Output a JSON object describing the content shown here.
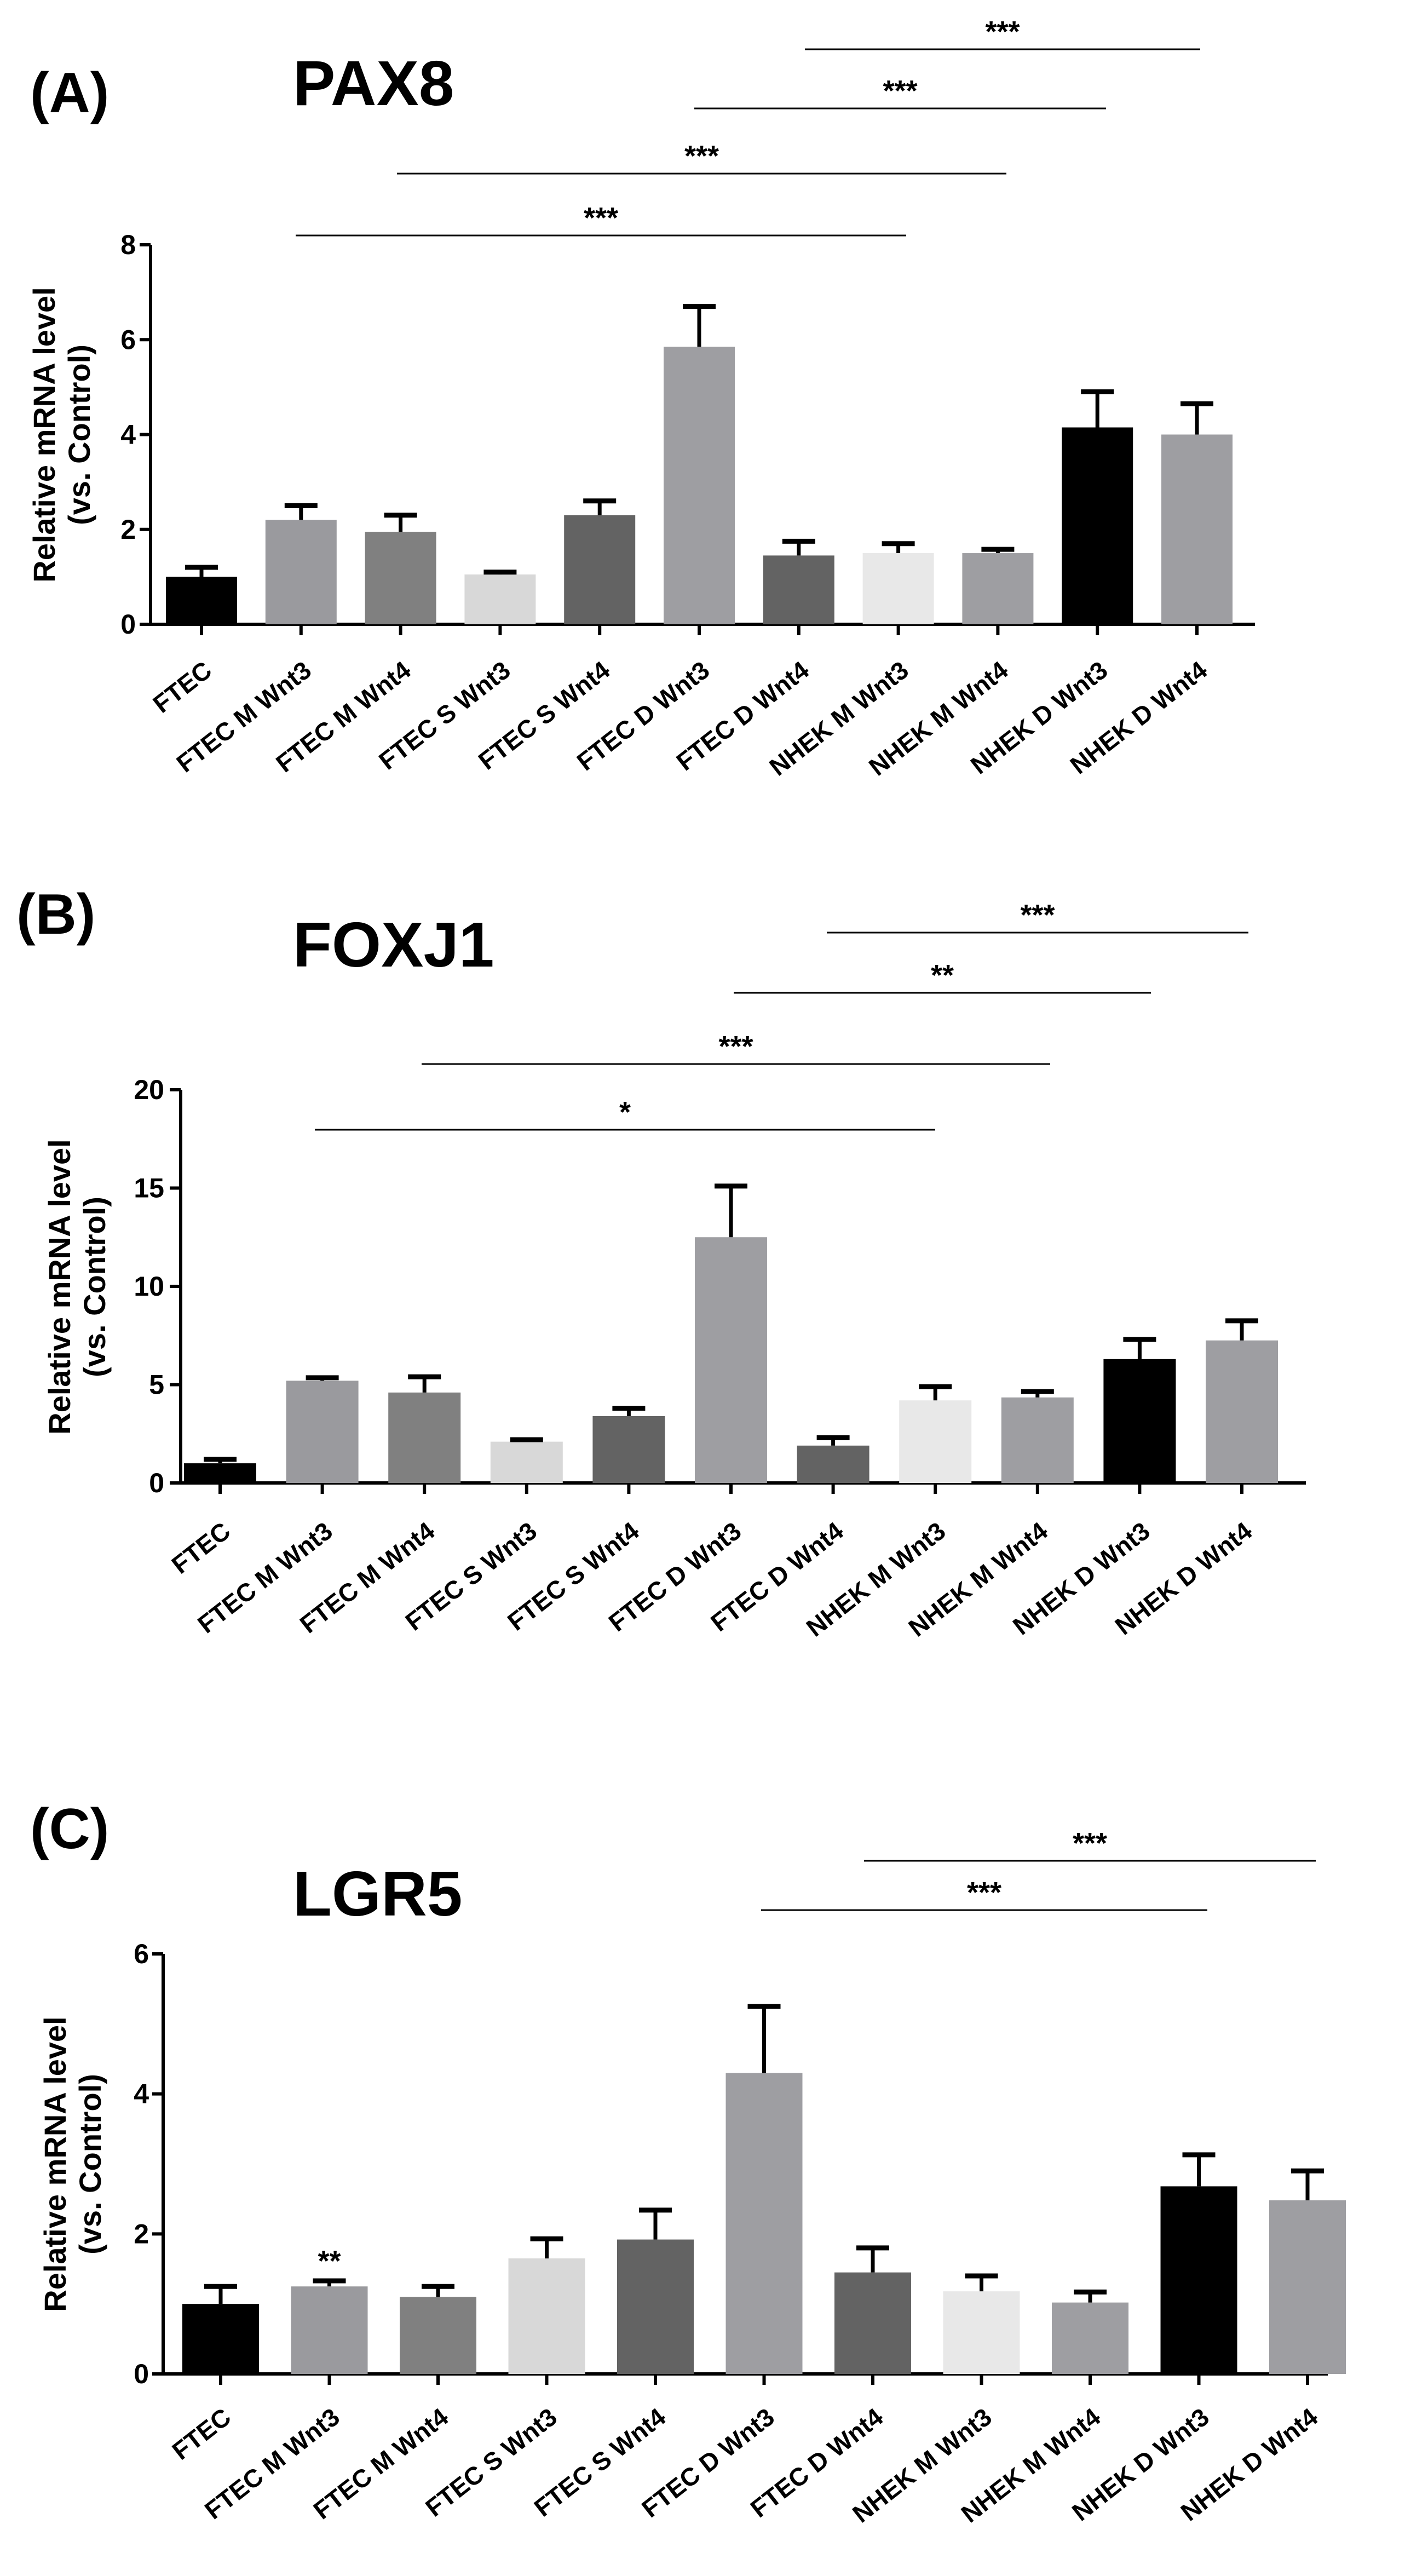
{
  "colors": {
    "black": "#000000",
    "mid_grey": "#9a9a9e",
    "grey": "#808080",
    "light_grey": "#d8d8d8",
    "dark_grey": "#636363",
    "pale_grey": "#e8e8e8",
    "medium_grey": "#9e9ea2"
  },
  "chart_data": [
    {
      "type": "bar",
      "panel_label": "(A)",
      "title": "PAX8",
      "ylabel_line1": "Relative mRNA level",
      "ylabel_line2": "(vs. Control)",
      "xlabel": "",
      "ylim": [
        0,
        8
      ],
      "yticks": [
        0,
        2,
        4,
        6,
        8
      ],
      "categories": [
        "FTEC",
        "FTEC M Wnt3",
        "FTEC M Wnt4",
        "FTEC S Wnt3",
        "FTEC S Wnt4",
        "FTEC D Wnt3",
        "FTEC D Wnt4",
        "NHEK M Wnt3",
        "NHEK M Wnt4",
        "NHEK D Wnt3",
        "NHEK D Wnt4"
      ],
      "values": [
        1.0,
        2.2,
        1.95,
        1.05,
        2.3,
        5.85,
        1.45,
        1.5,
        1.5,
        4.15,
        4.0
      ],
      "errors": [
        0.2,
        0.3,
        0.35,
        0.05,
        0.3,
        0.85,
        0.3,
        0.2,
        0.08,
        0.75,
        0.65
      ],
      "bar_colors": [
        "#000000",
        "#9a9a9e",
        "#808080",
        "#d8d8d8",
        "#636363",
        "#9e9ea2",
        "#636363",
        "#e8e8e8",
        "#9e9ea2",
        "#000000",
        "#9e9ea2"
      ],
      "significance": [
        {
          "from": 1,
          "to": 7,
          "label": "***"
        },
        {
          "from": 2,
          "to": 8,
          "label": "***"
        },
        {
          "from": 5,
          "to": 9,
          "label": "***"
        },
        {
          "from": 6,
          "to": 10,
          "label": "***"
        }
      ],
      "bar_annotations": []
    },
    {
      "type": "bar",
      "panel_label": "(B)",
      "title": "FOXJ1",
      "ylabel_line1": "Relative mRNA level",
      "ylabel_line2": "(vs. Control)",
      "xlabel": "",
      "ylim": [
        0,
        20
      ],
      "yticks": [
        0,
        5,
        10,
        15,
        20
      ],
      "categories": [
        "FTEC",
        "FTEC M Wnt3",
        "FTEC M Wnt4",
        "FTEC S Wnt3",
        "FTEC S Wnt4",
        "FTEC D Wnt3",
        "FTEC D Wnt4",
        "NHEK M Wnt3",
        "NHEK M Wnt4",
        "NHEK D Wnt3",
        "NHEK D Wnt4"
      ],
      "values": [
        1.0,
        5.2,
        4.6,
        2.1,
        3.4,
        12.5,
        1.9,
        4.2,
        4.35,
        6.3,
        7.25
      ],
      "errors": [
        0.2,
        0.15,
        0.8,
        0.1,
        0.4,
        2.6,
        0.4,
        0.7,
        0.3,
        1.0,
        1.0
      ],
      "bar_colors": [
        "#000000",
        "#9a9a9e",
        "#808080",
        "#d8d8d8",
        "#636363",
        "#9e9ea2",
        "#636363",
        "#e8e8e8",
        "#9e9ea2",
        "#000000",
        "#9e9ea2"
      ],
      "significance": [
        {
          "from": 1,
          "to": 7,
          "label": "*"
        },
        {
          "from": 2,
          "to": 8,
          "label": "***"
        },
        {
          "from": 5,
          "to": 9,
          "label": "**"
        },
        {
          "from": 6,
          "to": 10,
          "label": "***"
        }
      ],
      "bar_annotations": []
    },
    {
      "type": "bar",
      "panel_label": "(C)",
      "title": "LGR5",
      "ylabel_line1": "Relative mRNA level",
      "ylabel_line2": "(vs. Control)",
      "xlabel": "",
      "ylim": [
        0,
        6
      ],
      "yticks": [
        0,
        2,
        4,
        6
      ],
      "categories": [
        "FTEC",
        "FTEC M Wnt3",
        "FTEC M Wnt4",
        "FTEC S Wnt3",
        "FTEC S Wnt4",
        "FTEC D Wnt3",
        "FTEC D Wnt4",
        "NHEK M Wnt3",
        "NHEK M Wnt4",
        "NHEK D Wnt3",
        "NHEK D Wnt4"
      ],
      "values": [
        1.0,
        1.25,
        1.1,
        1.65,
        1.92,
        4.3,
        1.45,
        1.18,
        1.02,
        2.68,
        2.48
      ],
      "errors": [
        0.25,
        0.08,
        0.15,
        0.28,
        0.42,
        0.95,
        0.35,
        0.22,
        0.15,
        0.45,
        0.42
      ],
      "bar_colors": [
        "#000000",
        "#9a9a9e",
        "#808080",
        "#d8d8d8",
        "#636363",
        "#9e9ea2",
        "#636363",
        "#e8e8e8",
        "#9e9ea2",
        "#000000",
        "#9e9ea2"
      ],
      "significance": [
        {
          "from": 5,
          "to": 9,
          "label": "***"
        },
        {
          "from": 6,
          "to": 10,
          "label": "***"
        }
      ],
      "bar_annotations": [
        {
          "index": 1,
          "label": "**"
        }
      ]
    }
  ]
}
